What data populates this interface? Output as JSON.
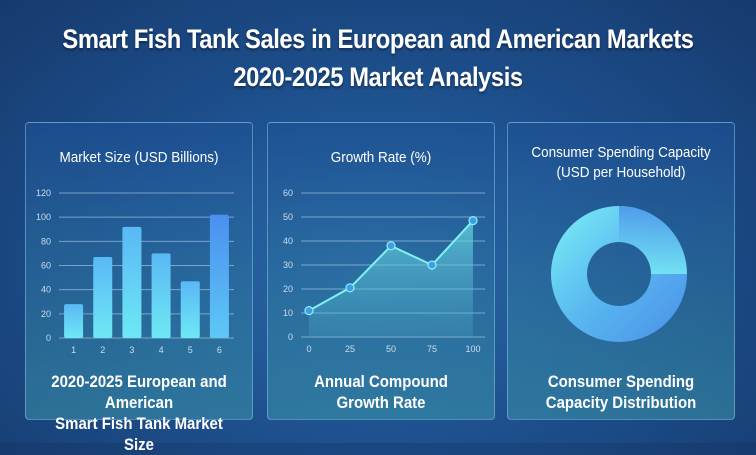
{
  "title": "Smart Fish Tank Sales in European and American Markets",
  "subtitle": "2020-2025 Market Analysis",
  "panels": [
    {
      "title": "Market Size (USD Billions)",
      "footer_line1": "2020-2025 European and American",
      "footer_line2": "Smart Fish Tank Market Size"
    },
    {
      "title": "Growth Rate (%)",
      "footer_line1": "Annual Compound",
      "footer_line2": "Growth Rate"
    },
    {
      "title_line1": "Consumer Spending Capacity",
      "title_line2": "(USD per Household)",
      "footer_line1": "Consumer Spending",
      "footer_line2": "Capacity Distribution"
    }
  ],
  "chart_data": [
    {
      "type": "bar",
      "title": "Market Size (USD Billions)",
      "categories": [
        "1",
        "2",
        "3",
        "4",
        "5",
        "6"
      ],
      "values": [
        28,
        67,
        92,
        70,
        47,
        102
      ],
      "ylim": [
        0,
        120
      ],
      "yticks": [
        0,
        20,
        40,
        60,
        80,
        100,
        120
      ],
      "grid": true
    },
    {
      "type": "area",
      "title": "Growth Rate (%)",
      "x": [
        0,
        25,
        50,
        75,
        100
      ],
      "y": [
        11,
        20.5,
        38,
        30,
        48.5
      ],
      "ylim": [
        0,
        60
      ],
      "yticks": [
        0,
        10,
        20,
        30,
        40,
        50,
        60
      ],
      "xticks": [
        0,
        25,
        50,
        75,
        100
      ],
      "grid": true
    },
    {
      "type": "pie",
      "title": "Consumer Spending Capacity (USD per Household)",
      "donut": true,
      "colors": [
        "#4a8fe8",
        "#7af0f5"
      ]
    }
  ]
}
